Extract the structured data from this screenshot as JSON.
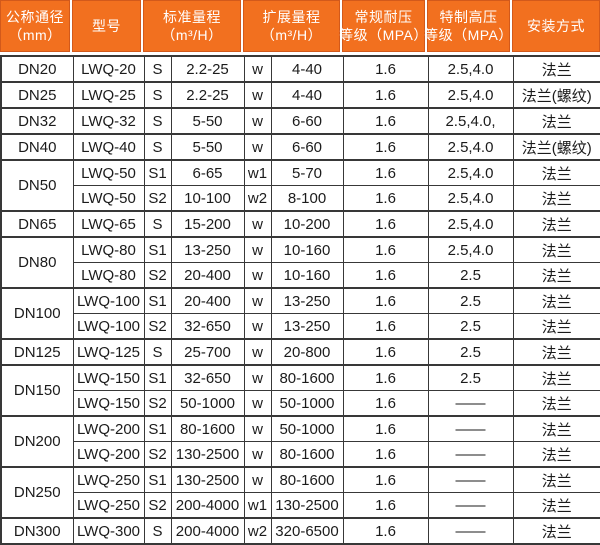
{
  "colors": {
    "header_bg": "#F2701F",
    "header_border": "#D2591B",
    "header_text": "#ffffff",
    "body_border": "#383838",
    "body_text": "#1b1b1b"
  },
  "header": {
    "columns": [
      {
        "id": "dn",
        "lines": [
          "公称通径",
          "（mm）"
        ]
      },
      {
        "id": "model",
        "lines": [
          "型号"
        ]
      },
      {
        "id": "standard-range",
        "lines": [
          "标准量程",
          "（m³/H）"
        ]
      },
      {
        "id": "extended-range",
        "lines": [
          "扩展量程",
          "（m³/H）"
        ]
      },
      {
        "id": "pressure",
        "lines": [
          "常规耐压",
          "等级（MPA）"
        ]
      },
      {
        "id": "high-pressure",
        "lines": [
          "特制高压",
          "等级（MPA）"
        ]
      },
      {
        "id": "install",
        "lines": [
          "安装方式"
        ]
      }
    ]
  },
  "groups": [
    {
      "dn": "DN20",
      "rows": [
        [
          "LWQ-20",
          "S",
          "2.2-25",
          "w",
          "4-40",
          "1.6",
          "2.5,4.0",
          "法兰"
        ]
      ]
    },
    {
      "dn": "DN25",
      "rows": [
        [
          "LWQ-25",
          "S",
          "2.2-25",
          "w",
          "4-40",
          "1.6",
          "2.5,4.0",
          "法兰(螺纹)"
        ]
      ]
    },
    {
      "dn": "DN32",
      "rows": [
        [
          "LWQ-32",
          "S",
          "5-50",
          "w",
          "6-60",
          "1.6",
          "2.5,4.0,",
          "法兰"
        ]
      ]
    },
    {
      "dn": "DN40",
      "rows": [
        [
          "LWQ-40",
          "S",
          "5-50",
          "w",
          "6-60",
          "1.6",
          "2.5,4.0",
          "法兰(螺纹)"
        ]
      ]
    },
    {
      "dn": "DN50",
      "rows": [
        [
          "LWQ-50",
          "S1",
          "6-65",
          "w1",
          "5-70",
          "1.6",
          "2.5,4.0",
          "法兰"
        ],
        [
          "LWQ-50",
          "S2",
          "10-100",
          "w2",
          "8-100",
          "1.6",
          "2.5,4.0",
          "法兰"
        ]
      ]
    },
    {
      "dn": "DN65",
      "rows": [
        [
          "LWQ-65",
          "S",
          "15-200",
          "w",
          "10-200",
          "1.6",
          "2.5,4.0",
          "法兰"
        ]
      ]
    },
    {
      "dn": "DN80",
      "rows": [
        [
          "LWQ-80",
          "S1",
          "13-250",
          "w",
          "10-160",
          "1.6",
          "2.5,4.0",
          "法兰"
        ],
        [
          "LWQ-80",
          "S2",
          "20-400",
          "w",
          "10-160",
          "1.6",
          "2.5",
          "法兰"
        ]
      ]
    },
    {
      "dn": "DN100",
      "rows": [
        [
          "LWQ-100",
          "S1",
          "20-400",
          "w",
          "13-250",
          "1.6",
          "2.5",
          "法兰"
        ],
        [
          "LWQ-100",
          "S2",
          "32-650",
          "w",
          "13-250",
          "1.6",
          "2.5",
          "法兰"
        ]
      ]
    },
    {
      "dn": "DN125",
      "rows": [
        [
          "LWQ-125",
          "S",
          "25-700",
          "w",
          "20-800",
          "1.6",
          "2.5",
          "法兰"
        ]
      ]
    },
    {
      "dn": "DN150",
      "rows": [
        [
          "LWQ-150",
          "S1",
          "32-650",
          "w",
          "80-1600",
          "1.6",
          "2.5",
          "法兰"
        ],
        [
          "LWQ-150",
          "S2",
          "50-1000",
          "w",
          "50-1000",
          "1.6",
          "——",
          "法兰"
        ]
      ]
    },
    {
      "dn": "DN200",
      "rows": [
        [
          "LWQ-200",
          "S1",
          "80-1600",
          "w",
          "50-1000",
          "1.6",
          "——",
          "法兰"
        ],
        [
          "LWQ-200",
          "S2",
          "130-2500",
          "w",
          "80-1600",
          "1.6",
          "——",
          "法兰"
        ]
      ]
    },
    {
      "dn": "DN250",
      "rows": [
        [
          "LWQ-250",
          "S1",
          "130-2500",
          "w",
          "80-1600",
          "1.6",
          "——",
          "法兰"
        ],
        [
          "LWQ-250",
          "S2",
          "200-4000",
          "w1",
          "130-2500",
          "1.6",
          "——",
          "法兰"
        ]
      ]
    },
    {
      "dn": "DN300",
      "rows": [
        [
          "LWQ-300",
          "S",
          "200-4000",
          "w2",
          "320-6500",
          "1.6",
          "——",
          "法兰"
        ]
      ]
    }
  ]
}
